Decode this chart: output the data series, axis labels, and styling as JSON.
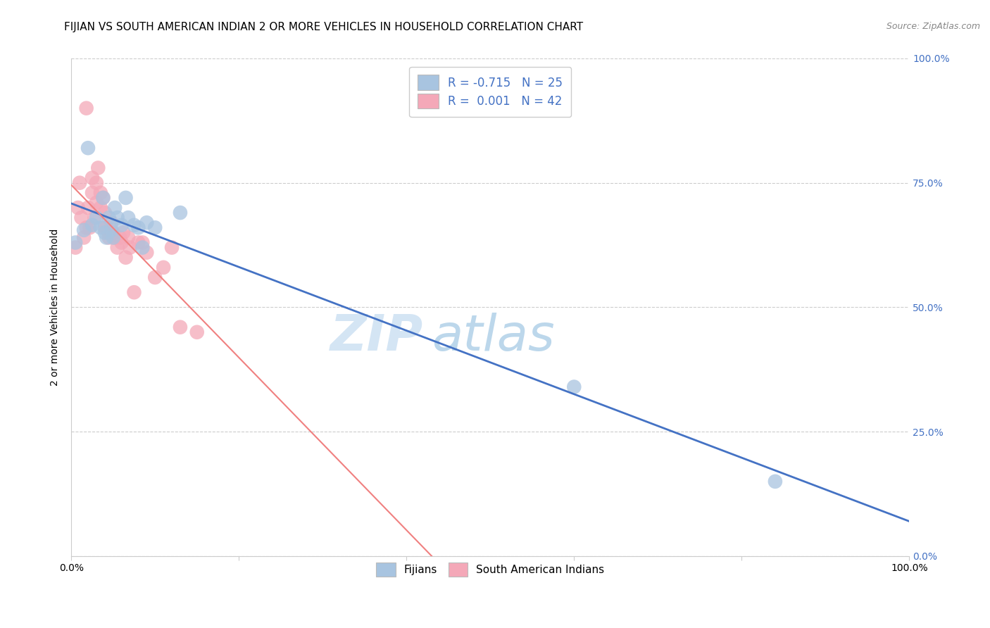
{
  "title": "FIJIAN VS SOUTH AMERICAN INDIAN 2 OR MORE VEHICLES IN HOUSEHOLD CORRELATION CHART",
  "source": "Source: ZipAtlas.com",
  "ylabel": "2 or more Vehicles in Household",
  "xlim": [
    0.0,
    1.0
  ],
  "ylim": [
    0.0,
    1.0
  ],
  "xticks": [
    0.0,
    0.2,
    0.4,
    0.6,
    0.8,
    1.0
  ],
  "yticks": [
    0.0,
    0.25,
    0.5,
    0.75,
    1.0
  ],
  "xticklabels": [
    "0.0%",
    "",
    "",
    "",
    "",
    "100.0%"
  ],
  "yticklabels_right": [
    "0.0%",
    "25.0%",
    "50.0%",
    "75.0%",
    "100.0%"
  ],
  "fijian_color": "#a8c4e0",
  "south_american_color": "#f4a8b8",
  "fijian_line_color": "#4472c4",
  "south_american_line_color": "#f08080",
  "legend_fijian_label": "R = -0.715   N = 25",
  "legend_south_label": "R =  0.001   N = 42",
  "watermark_zip": "ZIP",
  "watermark_atlas": "atlas",
  "fijian_x": [
    0.005,
    0.015,
    0.02,
    0.025,
    0.03,
    0.035,
    0.038,
    0.04,
    0.042,
    0.045,
    0.048,
    0.05,
    0.052,
    0.055,
    0.06,
    0.065,
    0.068,
    0.075,
    0.08,
    0.085,
    0.09,
    0.1,
    0.13,
    0.6,
    0.84
  ],
  "fijian_y": [
    0.63,
    0.655,
    0.82,
    0.665,
    0.68,
    0.66,
    0.72,
    0.65,
    0.64,
    0.68,
    0.655,
    0.64,
    0.7,
    0.68,
    0.665,
    0.72,
    0.68,
    0.665,
    0.66,
    0.62,
    0.67,
    0.66,
    0.69,
    0.34,
    0.15
  ],
  "south_x": [
    0.005,
    0.008,
    0.01,
    0.012,
    0.015,
    0.018,
    0.018,
    0.02,
    0.022,
    0.025,
    0.025,
    0.028,
    0.03,
    0.03,
    0.032,
    0.035,
    0.035,
    0.038,
    0.04,
    0.04,
    0.042,
    0.045,
    0.045,
    0.048,
    0.05,
    0.052,
    0.055,
    0.058,
    0.06,
    0.062,
    0.065,
    0.068,
    0.07,
    0.075,
    0.08,
    0.085,
    0.09,
    0.1,
    0.11,
    0.12,
    0.13,
    0.15
  ],
  "south_y": [
    0.62,
    0.7,
    0.75,
    0.68,
    0.64,
    0.66,
    0.9,
    0.7,
    0.66,
    0.73,
    0.76,
    0.68,
    0.71,
    0.75,
    0.78,
    0.73,
    0.7,
    0.72,
    0.69,
    0.66,
    0.66,
    0.65,
    0.64,
    0.67,
    0.65,
    0.64,
    0.62,
    0.64,
    0.63,
    0.65,
    0.6,
    0.64,
    0.62,
    0.53,
    0.63,
    0.63,
    0.61,
    0.56,
    0.58,
    0.62,
    0.46,
    0.45
  ],
  "title_fontsize": 11,
  "source_fontsize": 9,
  "axis_label_fontsize": 10,
  "tick_fontsize": 10,
  "legend_fontsize": 12,
  "watermark_fontsize": 52,
  "grid_color": "#cccccc",
  "background_color": "#ffffff",
  "right_tick_color": "#4472c4"
}
